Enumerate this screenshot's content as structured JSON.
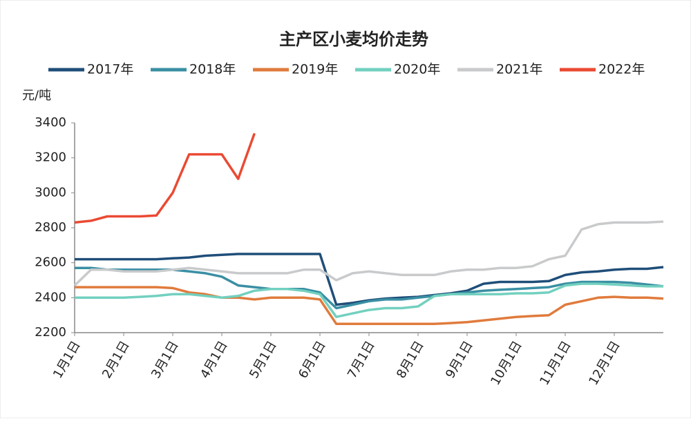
{
  "chart_data": {
    "type": "line",
    "title": "主产区小麦均价走势",
    "y_label": "元/吨",
    "x": [
      "1月1日",
      "1月11日",
      "1月21日",
      "2月1日",
      "2月11日",
      "2月21日",
      "3月1日",
      "3月11日",
      "3月21日",
      "4月1日",
      "4月11日",
      "4月21日",
      "5月1日",
      "5月11日",
      "5月21日",
      "6月1日",
      "6月11日",
      "6月21日",
      "7月1日",
      "7月11日",
      "7月21日",
      "8月1日",
      "8月11日",
      "8月21日",
      "9月1日",
      "9月11日",
      "9月21日",
      "10月1日",
      "10月11日",
      "10月21日",
      "11月1日",
      "11月11日",
      "11月21日",
      "12月1日",
      "12月11日",
      "12月21日",
      "12月31日"
    ],
    "xticks": [
      "1月1日",
      "2月1日",
      "3月1日",
      "4月1日",
      "5月1日",
      "6月1日",
      "7月1日",
      "8月1日",
      "9月1日",
      "10月1日",
      "11月1日",
      "12月1日"
    ],
    "ylim": [
      2200,
      3400
    ],
    "yticks": [
      2200,
      2400,
      2600,
      2800,
      3000,
      3200,
      3400
    ],
    "grid": false,
    "series": [
      {
        "name": "2017年",
        "color": "#1f4e79",
        "values": [
          2620,
          2620,
          2620,
          2620,
          2620,
          2620,
          2625,
          2630,
          2640,
          2645,
          2650,
          2650,
          2650,
          2650,
          2650,
          2650,
          2360,
          2370,
          2385,
          2395,
          2400,
          2405,
          2415,
          2425,
          2440,
          2480,
          2490,
          2490,
          2490,
          2495,
          2530,
          2545,
          2550,
          2560,
          2565,
          2565,
          2575
        ]
      },
      {
        "name": "2018年",
        "color": "#3a8fa3",
        "values": [
          2570,
          2570,
          2560,
          2560,
          2560,
          2560,
          2560,
          2550,
          2540,
          2520,
          2470,
          2460,
          2450,
          2450,
          2450,
          2430,
          2340,
          2360,
          2380,
          2390,
          2390,
          2400,
          2410,
          2420,
          2430,
          2440,
          2445,
          2450,
          2455,
          2460,
          2480,
          2490,
          2490,
          2490,
          2485,
          2475,
          2465
        ]
      },
      {
        "name": "2019年",
        "color": "#e07b3c",
        "values": [
          2460,
          2460,
          2460,
          2460,
          2460,
          2460,
          2455,
          2430,
          2420,
          2400,
          2400,
          2390,
          2400,
          2400,
          2400,
          2390,
          2250,
          2250,
          2250,
          2250,
          2250,
          2250,
          2250,
          2255,
          2260,
          2270,
          2280,
          2290,
          2295,
          2300,
          2360,
          2380,
          2400,
          2405,
          2400,
          2400,
          2395
        ]
      },
      {
        "name": "2020年",
        "color": "#72d0bf",
        "values": [
          2400,
          2400,
          2400,
          2400,
          2405,
          2410,
          2420,
          2420,
          2410,
          2400,
          2410,
          2440,
          2450,
          2450,
          2440,
          2420,
          2290,
          2310,
          2330,
          2340,
          2340,
          2350,
          2410,
          2420,
          2420,
          2420,
          2420,
          2425,
          2425,
          2430,
          2470,
          2480,
          2480,
          2475,
          2470,
          2465,
          2465
        ]
      },
      {
        "name": "2021年",
        "color": "#c8cacc",
        "values": [
          2470,
          2560,
          2560,
          2550,
          2550,
          2550,
          2560,
          2570,
          2560,
          2550,
          2540,
          2540,
          2540,
          2540,
          2560,
          2560,
          2500,
          2540,
          2550,
          2540,
          2530,
          2530,
          2530,
          2550,
          2560,
          2560,
          2570,
          2570,
          2580,
          2620,
          2640,
          2790,
          2820,
          2830,
          2830,
          2830,
          2835
        ]
      },
      {
        "name": "2022年",
        "color": "#ea4a33",
        "values": [
          2830,
          2840,
          2865,
          2865,
          2865,
          2870,
          3000,
          3220,
          3220,
          3220,
          3080,
          3340,
          null,
          null,
          null,
          null,
          null,
          null,
          null,
          null,
          null,
          null,
          null,
          null,
          null,
          null,
          null,
          null,
          null,
          null,
          null,
          null,
          null,
          null,
          null,
          null,
          null
        ]
      }
    ]
  }
}
